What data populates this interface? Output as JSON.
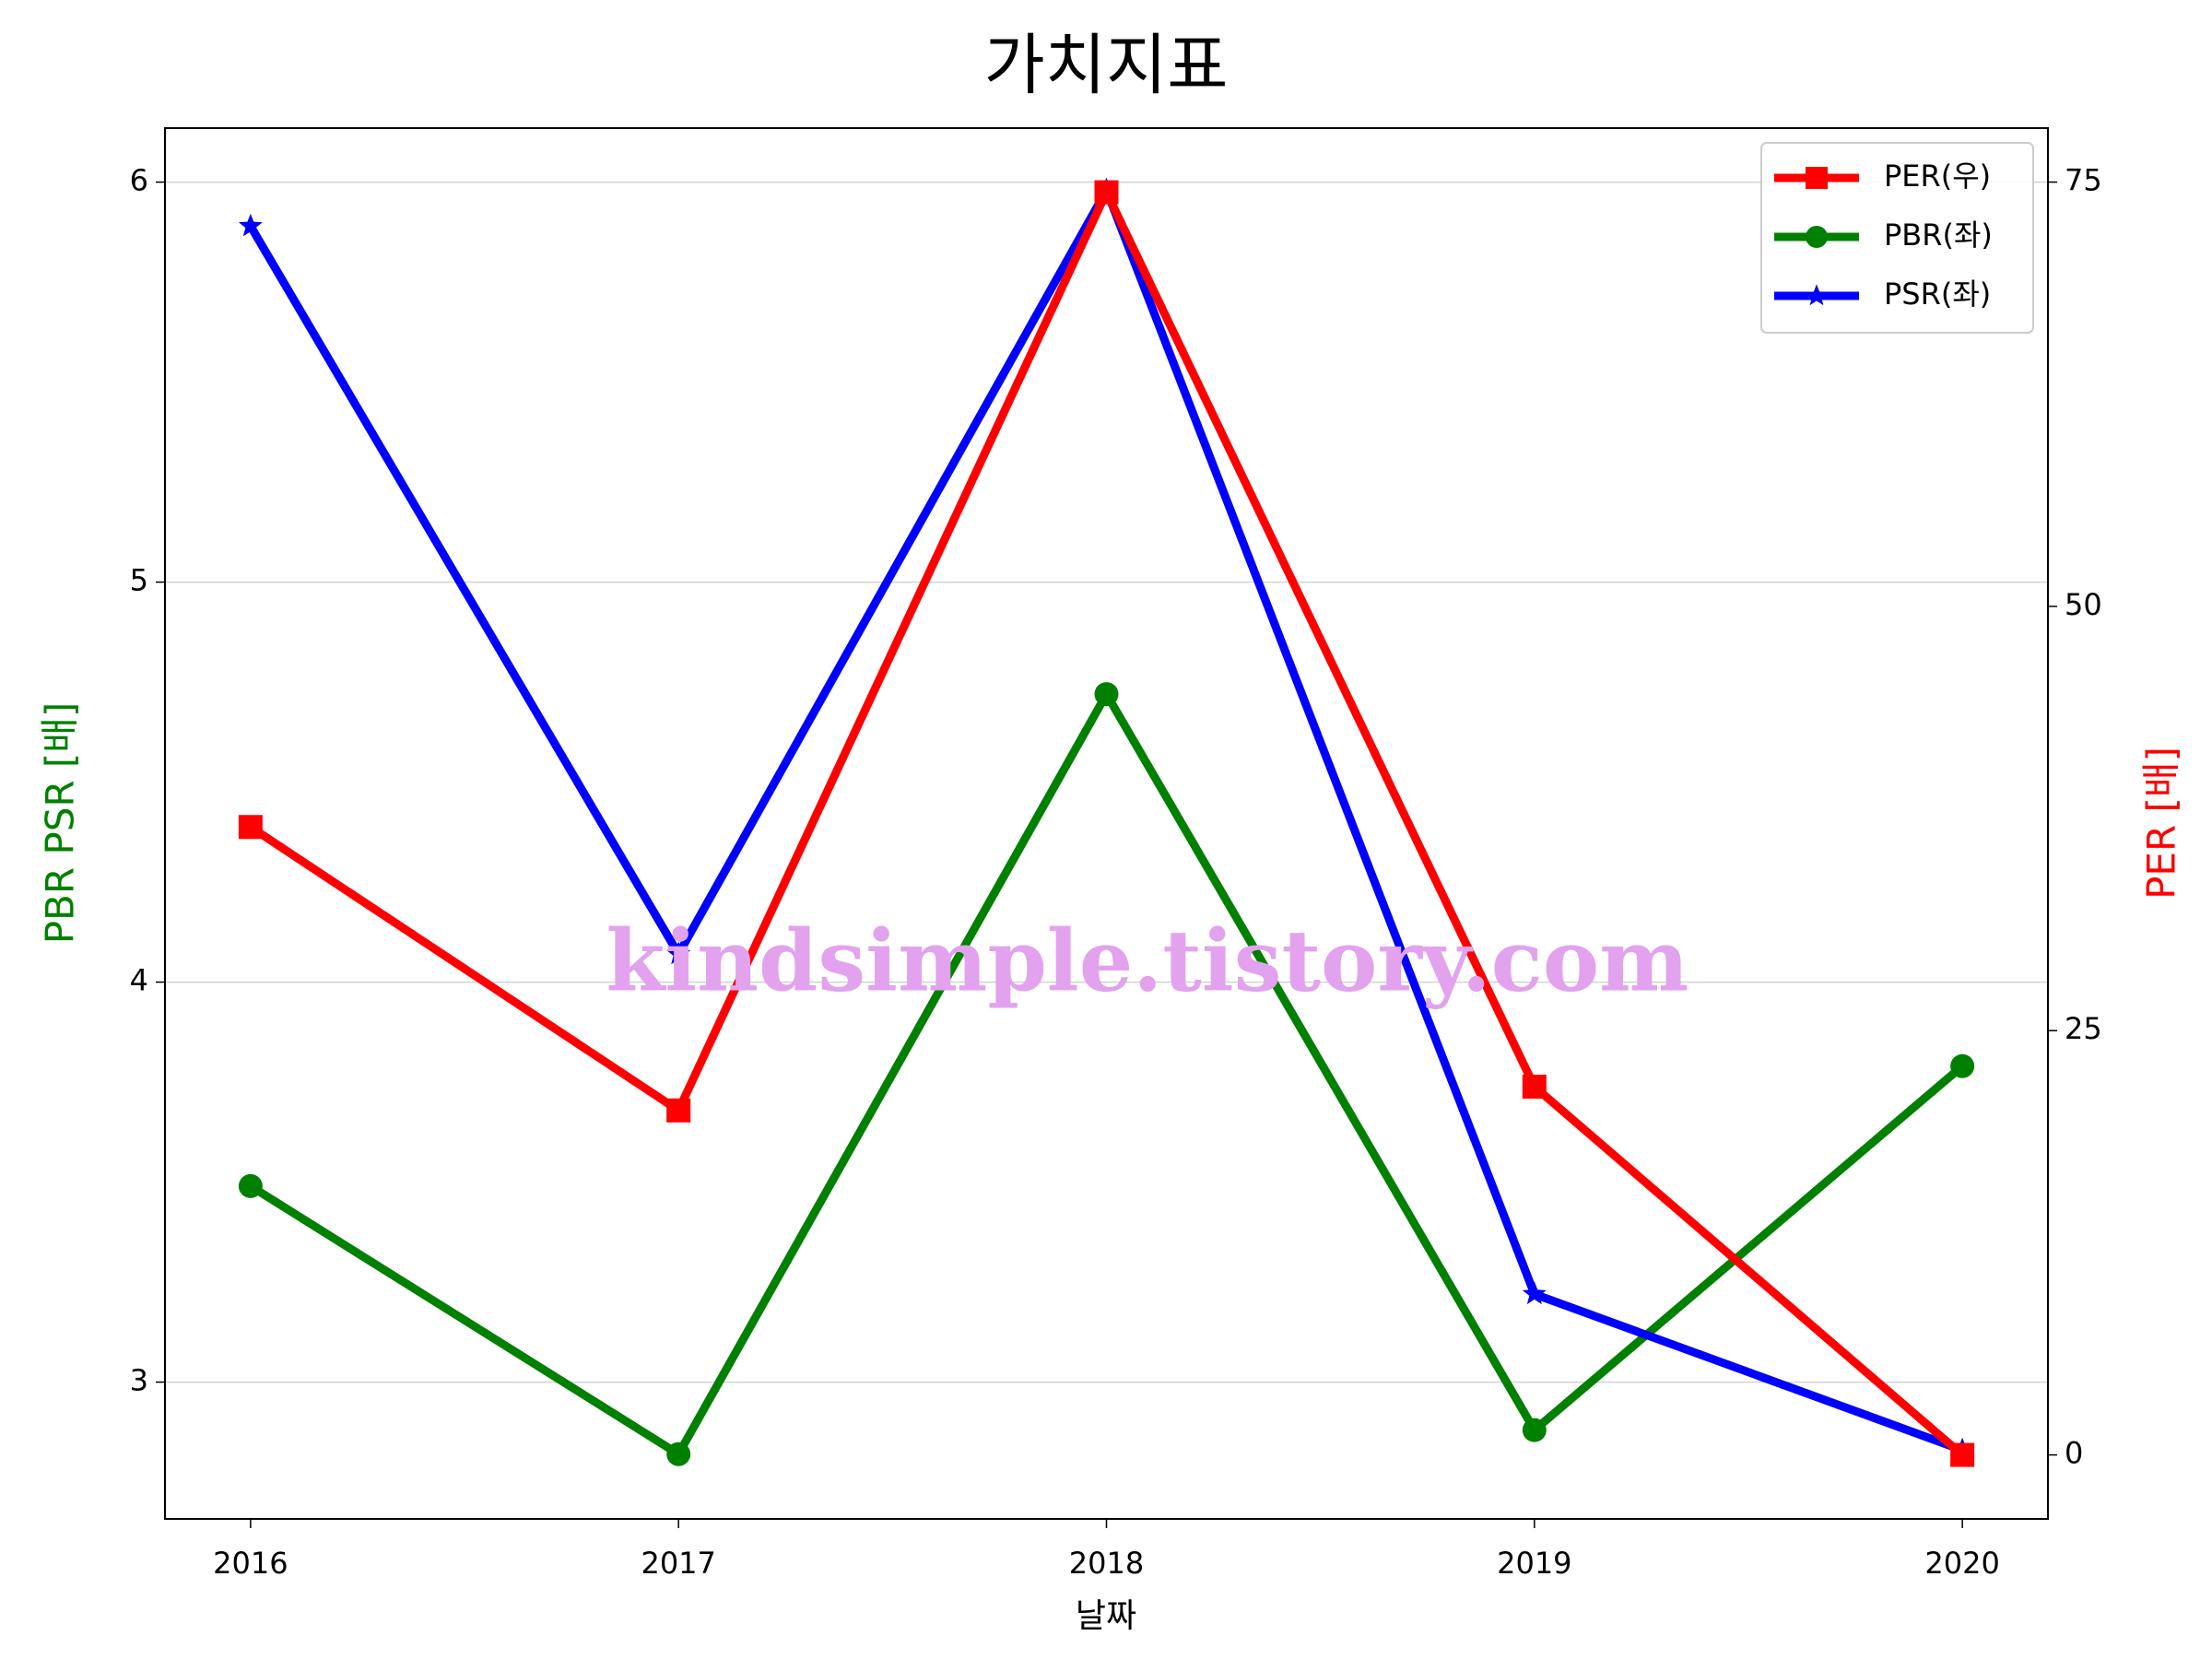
{
  "chart_data": {
    "type": "line",
    "title": "가치지표",
    "xlabel": "날짜",
    "ylabel": "PBR PSR [배]",
    "y2label": "PER [배]",
    "ylabel_color": "green",
    "y2label_color": "red",
    "x": [
      2016,
      2017,
      2018,
      2019,
      2020
    ],
    "series": [
      {
        "name": "PER(우)",
        "color": "red",
        "marker": "square",
        "axis": "y2",
        "values": [
          37.0,
          20.3,
          74.4,
          21.7,
          0.0
        ]
      },
      {
        "name": "PBR(좌)",
        "color": "green",
        "marker": "circle",
        "values": [
          3.49,
          2.82,
          4.72,
          2.88,
          3.79
        ]
      },
      {
        "name": "PSR(좌)",
        "color": "blue",
        "marker": "star",
        "values": [
          5.89,
          4.07,
          5.98,
          3.22,
          2.83
        ]
      }
    ],
    "xlim": [
      2015.8,
      2020.2
    ],
    "xticks": [
      2016,
      2017,
      2018,
      2019,
      2020
    ],
    "ylim": [
      2.658,
      6.135
    ],
    "yticks": [
      3,
      4,
      5,
      6
    ],
    "y2lim": [
      -3.77,
      78.18
    ],
    "y2ticks": [
      0,
      25,
      50,
      75
    ],
    "grid": true,
    "legend": "upper right",
    "watermark": "kindsimple.tistory.com"
  }
}
